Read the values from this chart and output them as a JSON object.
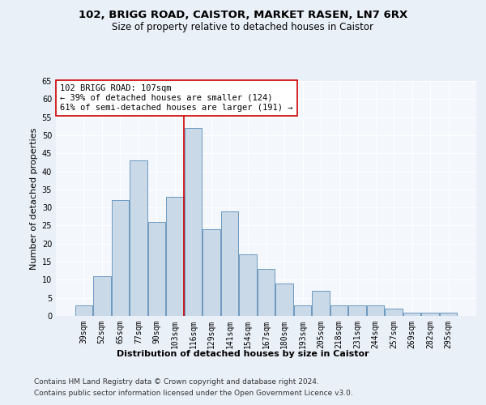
{
  "title1": "102, BRIGG ROAD, CAISTOR, MARKET RASEN, LN7 6RX",
  "title2": "Size of property relative to detached houses in Caistor",
  "xlabel": "Distribution of detached houses by size in Caistor",
  "ylabel": "Number of detached properties",
  "categories": [
    "39sqm",
    "52sqm",
    "65sqm",
    "77sqm",
    "90sqm",
    "103sqm",
    "116sqm",
    "129sqm",
    "141sqm",
    "154sqm",
    "167sqm",
    "180sqm",
    "193sqm",
    "205sqm",
    "218sqm",
    "231sqm",
    "244sqm",
    "257sqm",
    "269sqm",
    "282sqm",
    "295sqm"
  ],
  "values": [
    3,
    11,
    32,
    43,
    26,
    33,
    52,
    24,
    29,
    17,
    13,
    9,
    3,
    7,
    3,
    3,
    3,
    2,
    1,
    1,
    1
  ],
  "bar_color": "#c9d9e8",
  "bar_edge_color": "#5b8db8",
  "vline_x_idx": 5.5,
  "vline_color": "#cc0000",
  "annotation_text": "102 BRIGG ROAD: 107sqm\n← 39% of detached houses are smaller (124)\n61% of semi-detached houses are larger (191) →",
  "annotation_box_color": "#ffffff",
  "annotation_box_edge": "#cc0000",
  "ylim": [
    0,
    65
  ],
  "yticks": [
    0,
    5,
    10,
    15,
    20,
    25,
    30,
    35,
    40,
    45,
    50,
    55,
    60,
    65
  ],
  "footer1": "Contains HM Land Registry data © Crown copyright and database right 2024.",
  "footer2": "Contains public sector information licensed under the Open Government Licence v3.0.",
  "background_color": "#eaf0f8",
  "plot_bg_color": "#f4f7fc",
  "title1_fontsize": 9.5,
  "title2_fontsize": 8.5,
  "tick_fontsize": 7,
  "label_fontsize": 8,
  "annotation_fontsize": 7.5,
  "footer_fontsize": 6.5
}
